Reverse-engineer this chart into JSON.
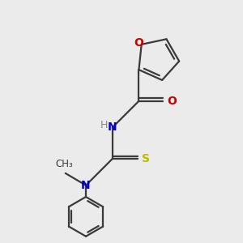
{
  "bg_color": "#ebebeb",
  "bond_color": "#3a3a3a",
  "O_color": "#cc0000",
  "N_color": "#0000cc",
  "S_color": "#bbbb00",
  "H_color": "#888888",
  "line_width": 1.6,
  "font_size": 10,
  "fig_width": 3.0,
  "fig_height": 3.0,
  "dpi": 100,
  "xlim": [
    0,
    10
  ],
  "ylim": [
    0,
    10
  ]
}
